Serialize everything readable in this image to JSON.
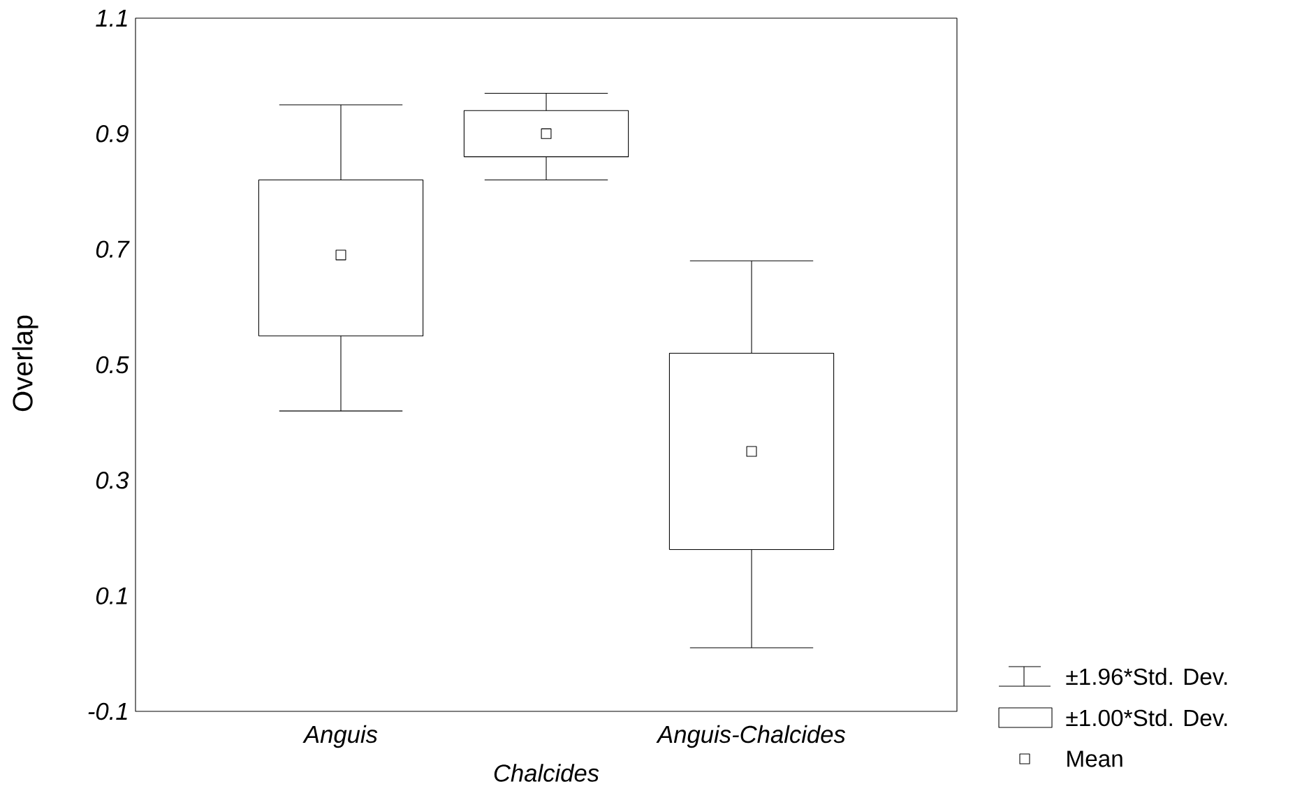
{
  "chart_data": {
    "type": "box",
    "ylabel": "Overlap",
    "categories": [
      "Anguis",
      "Chalcides",
      "Anguis-Chalcides"
    ],
    "boxes": [
      {
        "low": 0.42,
        "q1": 0.55,
        "q3": 0.82,
        "high": 0.95,
        "mean": 0.69
      },
      {
        "low": 0.82,
        "q1": 0.86,
        "q3": 0.94,
        "high": 0.97,
        "mean": 0.9
      },
      {
        "low": 0.01,
        "q1": 0.18,
        "q3": 0.52,
        "high": 0.68,
        "mean": 0.35
      }
    ],
    "ylim": [
      -0.1,
      1.1
    ],
    "yticks": [
      -0.1,
      0.1,
      0.3,
      0.5,
      0.7,
      0.9,
      1.1
    ],
    "marker": "square",
    "grid": false,
    "annotations": [
      "±1.96*Std. Dev.",
      "±1.00*Std. Dev.",
      "Mean"
    ]
  }
}
